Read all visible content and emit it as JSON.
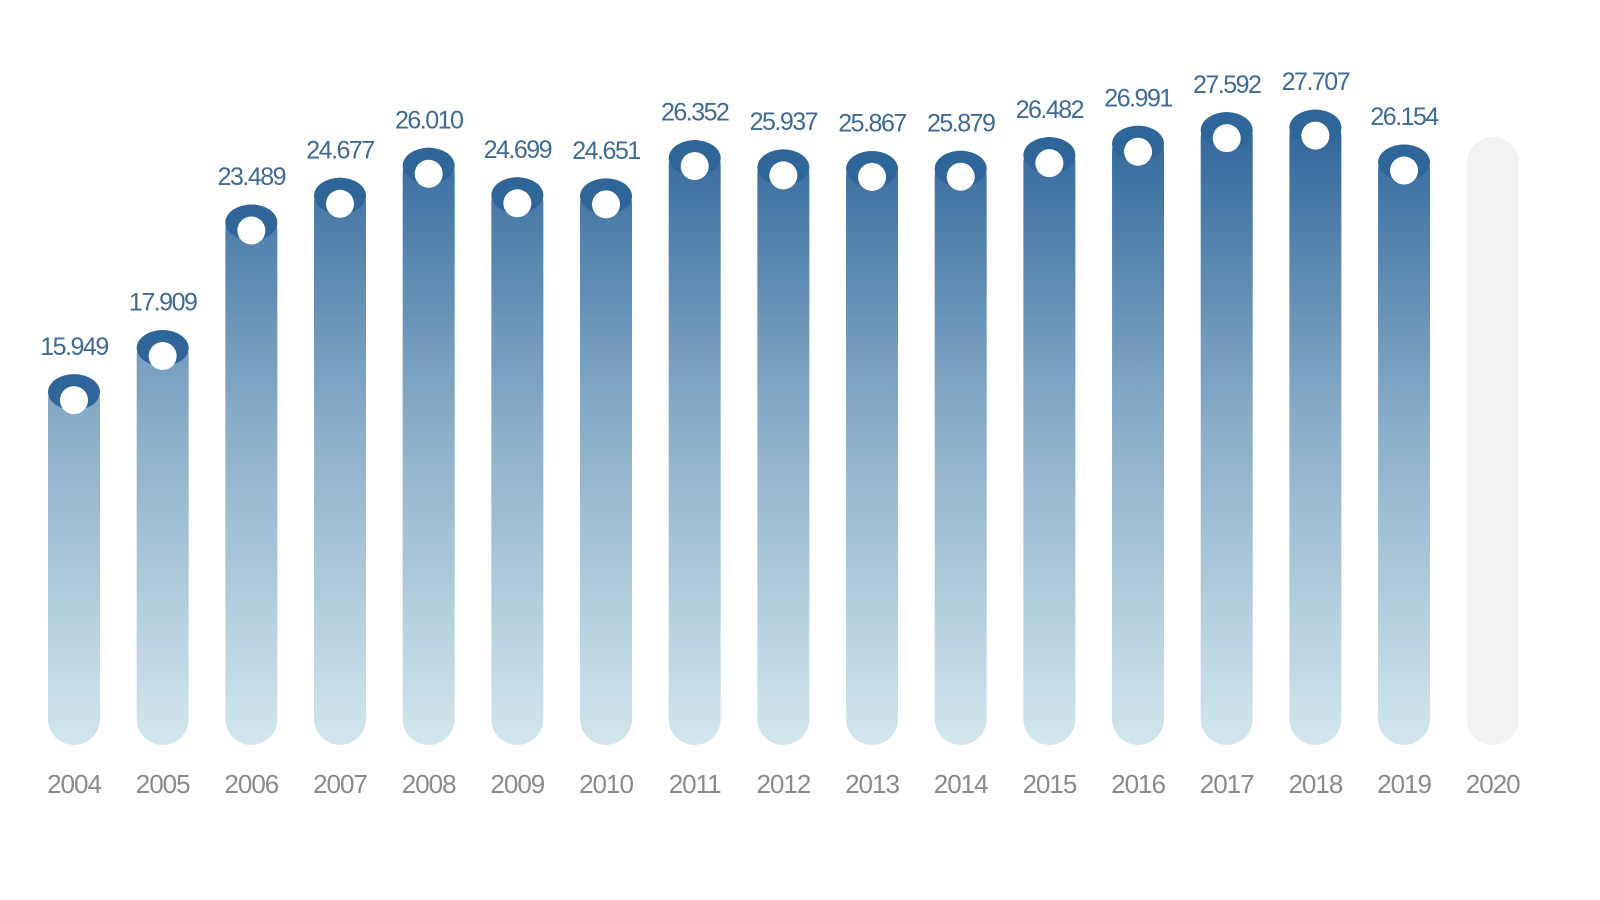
{
  "chart_data": {
    "type": "bar",
    "categories": [
      "2004",
      "2005",
      "2006",
      "2007",
      "2008",
      "2009",
      "2010",
      "2011",
      "2012",
      "2013",
      "2014",
      "2015",
      "2016",
      "2017",
      "2018",
      "2019",
      "2020"
    ],
    "values": [
      15949,
      17909,
      23489,
      24677,
      26010,
      24699,
      24651,
      26352,
      25937,
      25867,
      25879,
      26482,
      26991,
      27592,
      27707,
      26154,
      null
    ],
    "value_labels": [
      "15.949",
      "17.909",
      "23.489",
      "24.677",
      "26.010",
      "24.699",
      "24.651",
      "26.352",
      "25.937",
      "25.867",
      "25.879",
      "26.482",
      "26.991",
      "27.592",
      "27.707",
      "26.154",
      null
    ],
    "color": "#2f6699",
    "ylim": [
      0,
      30000
    ]
  }
}
